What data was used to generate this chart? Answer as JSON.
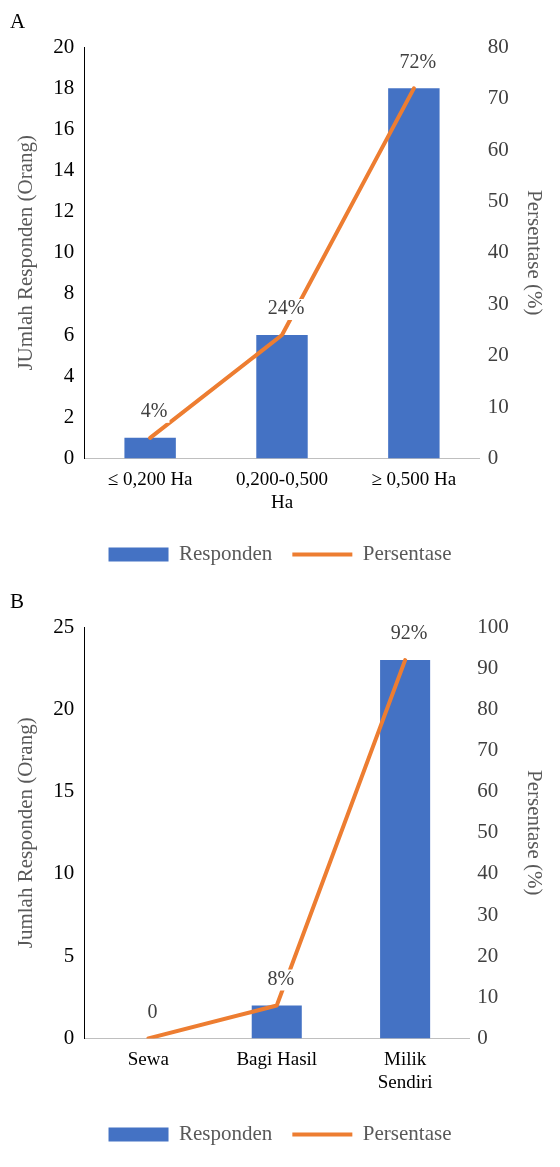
{
  "chart_data": [
    {
      "type": "bar",
      "title": "A",
      "ylabel": "JUmlah Responden (Orang)",
      "y2label": "Persentase (%)",
      "categories": [
        "≤ 0,200 Ha",
        "0,200-0,500 Ha",
        "≥ 0,500 Ha"
      ],
      "series": [
        {
          "name": "Responden",
          "color": "#4472c4",
          "values": [
            1,
            6,
            18
          ]
        },
        {
          "name": "Persentase",
          "type": "line",
          "axis": "y2",
          "color": "#ed7d31",
          "values": [
            4,
            24,
            72
          ],
          "value_labels": [
            "4%",
            "24%",
            "72%"
          ]
        }
      ],
      "ylim": [
        0,
        20
      ],
      "yticks": [
        0,
        2,
        4,
        6,
        8,
        10,
        12,
        14,
        16,
        18,
        20
      ],
      "y2lim": [
        0,
        80
      ],
      "y2ticks": [
        0,
        10,
        20,
        30,
        40,
        50,
        60,
        70,
        80
      ],
      "grid": false,
      "legend": "bottom",
      "marker": "none",
      "line_style": "solid"
    },
    {
      "type": "bar",
      "title": "B",
      "ylabel": "Jumlah Responden (Orang)",
      "y2label": "Persentase (%)",
      "categories": [
        "Sewa",
        "Bagi Hasil",
        "Milik Sendiri"
      ],
      "series": [
        {
          "name": "Responden",
          "color": "#4472c4",
          "values": [
            0,
            2,
            23
          ]
        },
        {
          "name": "Persentase",
          "type": "line",
          "axis": "y2",
          "color": "#ed7d31",
          "values": [
            0,
            8,
            92
          ],
          "value_labels": [
            "0",
            "8%",
            "92%"
          ]
        }
      ],
      "ylim": [
        0,
        25
      ],
      "yticks": [
        0,
        5,
        10,
        15,
        20,
        25
      ],
      "y2lim": [
        0,
        100
      ],
      "y2ticks": [
        0,
        10,
        20,
        30,
        40,
        50,
        60,
        70,
        80,
        90,
        100
      ],
      "grid": false,
      "legend": "bottom",
      "marker": "none",
      "line_style": "solid"
    }
  ]
}
